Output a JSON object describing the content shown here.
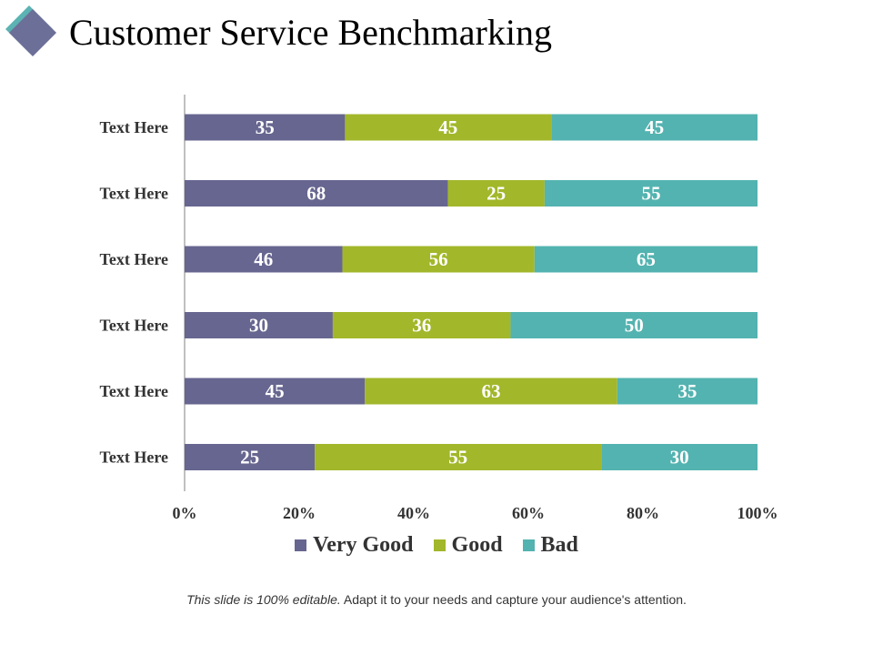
{
  "slide": {
    "title": "Customer Service Benchmarking",
    "footnote_italic": "This slide is 100% editable.",
    "footnote_rest": " Adapt it to your needs and capture your audience's attention."
  },
  "colors": {
    "very_good": "#676690",
    "good": "#a2b72a",
    "bad": "#53b3b0",
    "logo_back": "#5bb3b3",
    "logo_front": "#6c6f98"
  },
  "chart_data": {
    "type": "bar",
    "orientation": "horizontal",
    "stacked": "percent",
    "categories": [
      "Text Here",
      "Text Here",
      "Text Here",
      "Text Here",
      "Text Here",
      "Text Here"
    ],
    "series": [
      {
        "name": "Very Good",
        "color": "#676690",
        "values": [
          35,
          68,
          46,
          30,
          45,
          25
        ]
      },
      {
        "name": "Good",
        "color": "#a2b72a",
        "values": [
          45,
          25,
          56,
          36,
          63,
          55
        ]
      },
      {
        "name": "Bad",
        "color": "#53b3b0",
        "values": [
          45,
          55,
          65,
          50,
          35,
          30
        ]
      }
    ],
    "x_ticks": [
      "0%",
      "20%",
      "40%",
      "60%",
      "80%",
      "100%"
    ],
    "xlim": [
      0,
      100
    ],
    "legend": "bottom",
    "grid": false
  }
}
